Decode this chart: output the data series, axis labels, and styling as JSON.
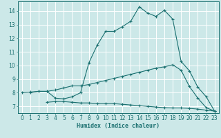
{
  "title": "",
  "xlabel": "Humidex (Indice chaleur)",
  "xlim": [
    -0.5,
    23.5
  ],
  "ylim": [
    6.5,
    14.7
  ],
  "yticks": [
    7,
    8,
    9,
    10,
    11,
    12,
    13,
    14
  ],
  "xticks": [
    0,
    1,
    2,
    3,
    4,
    5,
    6,
    7,
    8,
    9,
    10,
    11,
    12,
    13,
    14,
    15,
    16,
    17,
    18,
    19,
    20,
    21,
    22,
    23
  ],
  "bg_color": "#cce8e8",
  "line_color": "#1a7070",
  "grid_color": "#ffffff",
  "line1_x": [
    1,
    2,
    3,
    4,
    5,
    6,
    7,
    8,
    9,
    10,
    11,
    12,
    13,
    14,
    15,
    16,
    17,
    18,
    19,
    20,
    21,
    22,
    23
  ],
  "line1_y": [
    8.0,
    8.1,
    8.1,
    7.6,
    7.55,
    7.7,
    8.0,
    10.2,
    11.5,
    12.5,
    12.5,
    12.85,
    13.25,
    14.3,
    13.85,
    13.6,
    14.05,
    13.4,
    10.3,
    9.6,
    8.4,
    7.7,
    6.65
  ],
  "line2_x": [
    0,
    1,
    2,
    3,
    4,
    5,
    6,
    7,
    8,
    9,
    10,
    11,
    12,
    13,
    14,
    15,
    16,
    17,
    18,
    19,
    20,
    21,
    22,
    23
  ],
  "line2_y": [
    8.0,
    8.05,
    8.1,
    8.1,
    8.2,
    8.35,
    8.5,
    8.5,
    8.6,
    8.75,
    8.9,
    9.05,
    9.2,
    9.35,
    9.5,
    9.65,
    9.8,
    9.9,
    10.05,
    9.65,
    8.45,
    7.6,
    6.9,
    6.65
  ],
  "line3_x": [
    3,
    4,
    5,
    6,
    7,
    8,
    9,
    10,
    11,
    12,
    13,
    14,
    15,
    16,
    17,
    18,
    19,
    20,
    21,
    22,
    23
  ],
  "line3_y": [
    7.3,
    7.35,
    7.35,
    7.3,
    7.25,
    7.25,
    7.2,
    7.2,
    7.2,
    7.15,
    7.1,
    7.05,
    7.0,
    6.95,
    6.9,
    6.88,
    6.88,
    6.85,
    6.8,
    6.72,
    6.65
  ]
}
